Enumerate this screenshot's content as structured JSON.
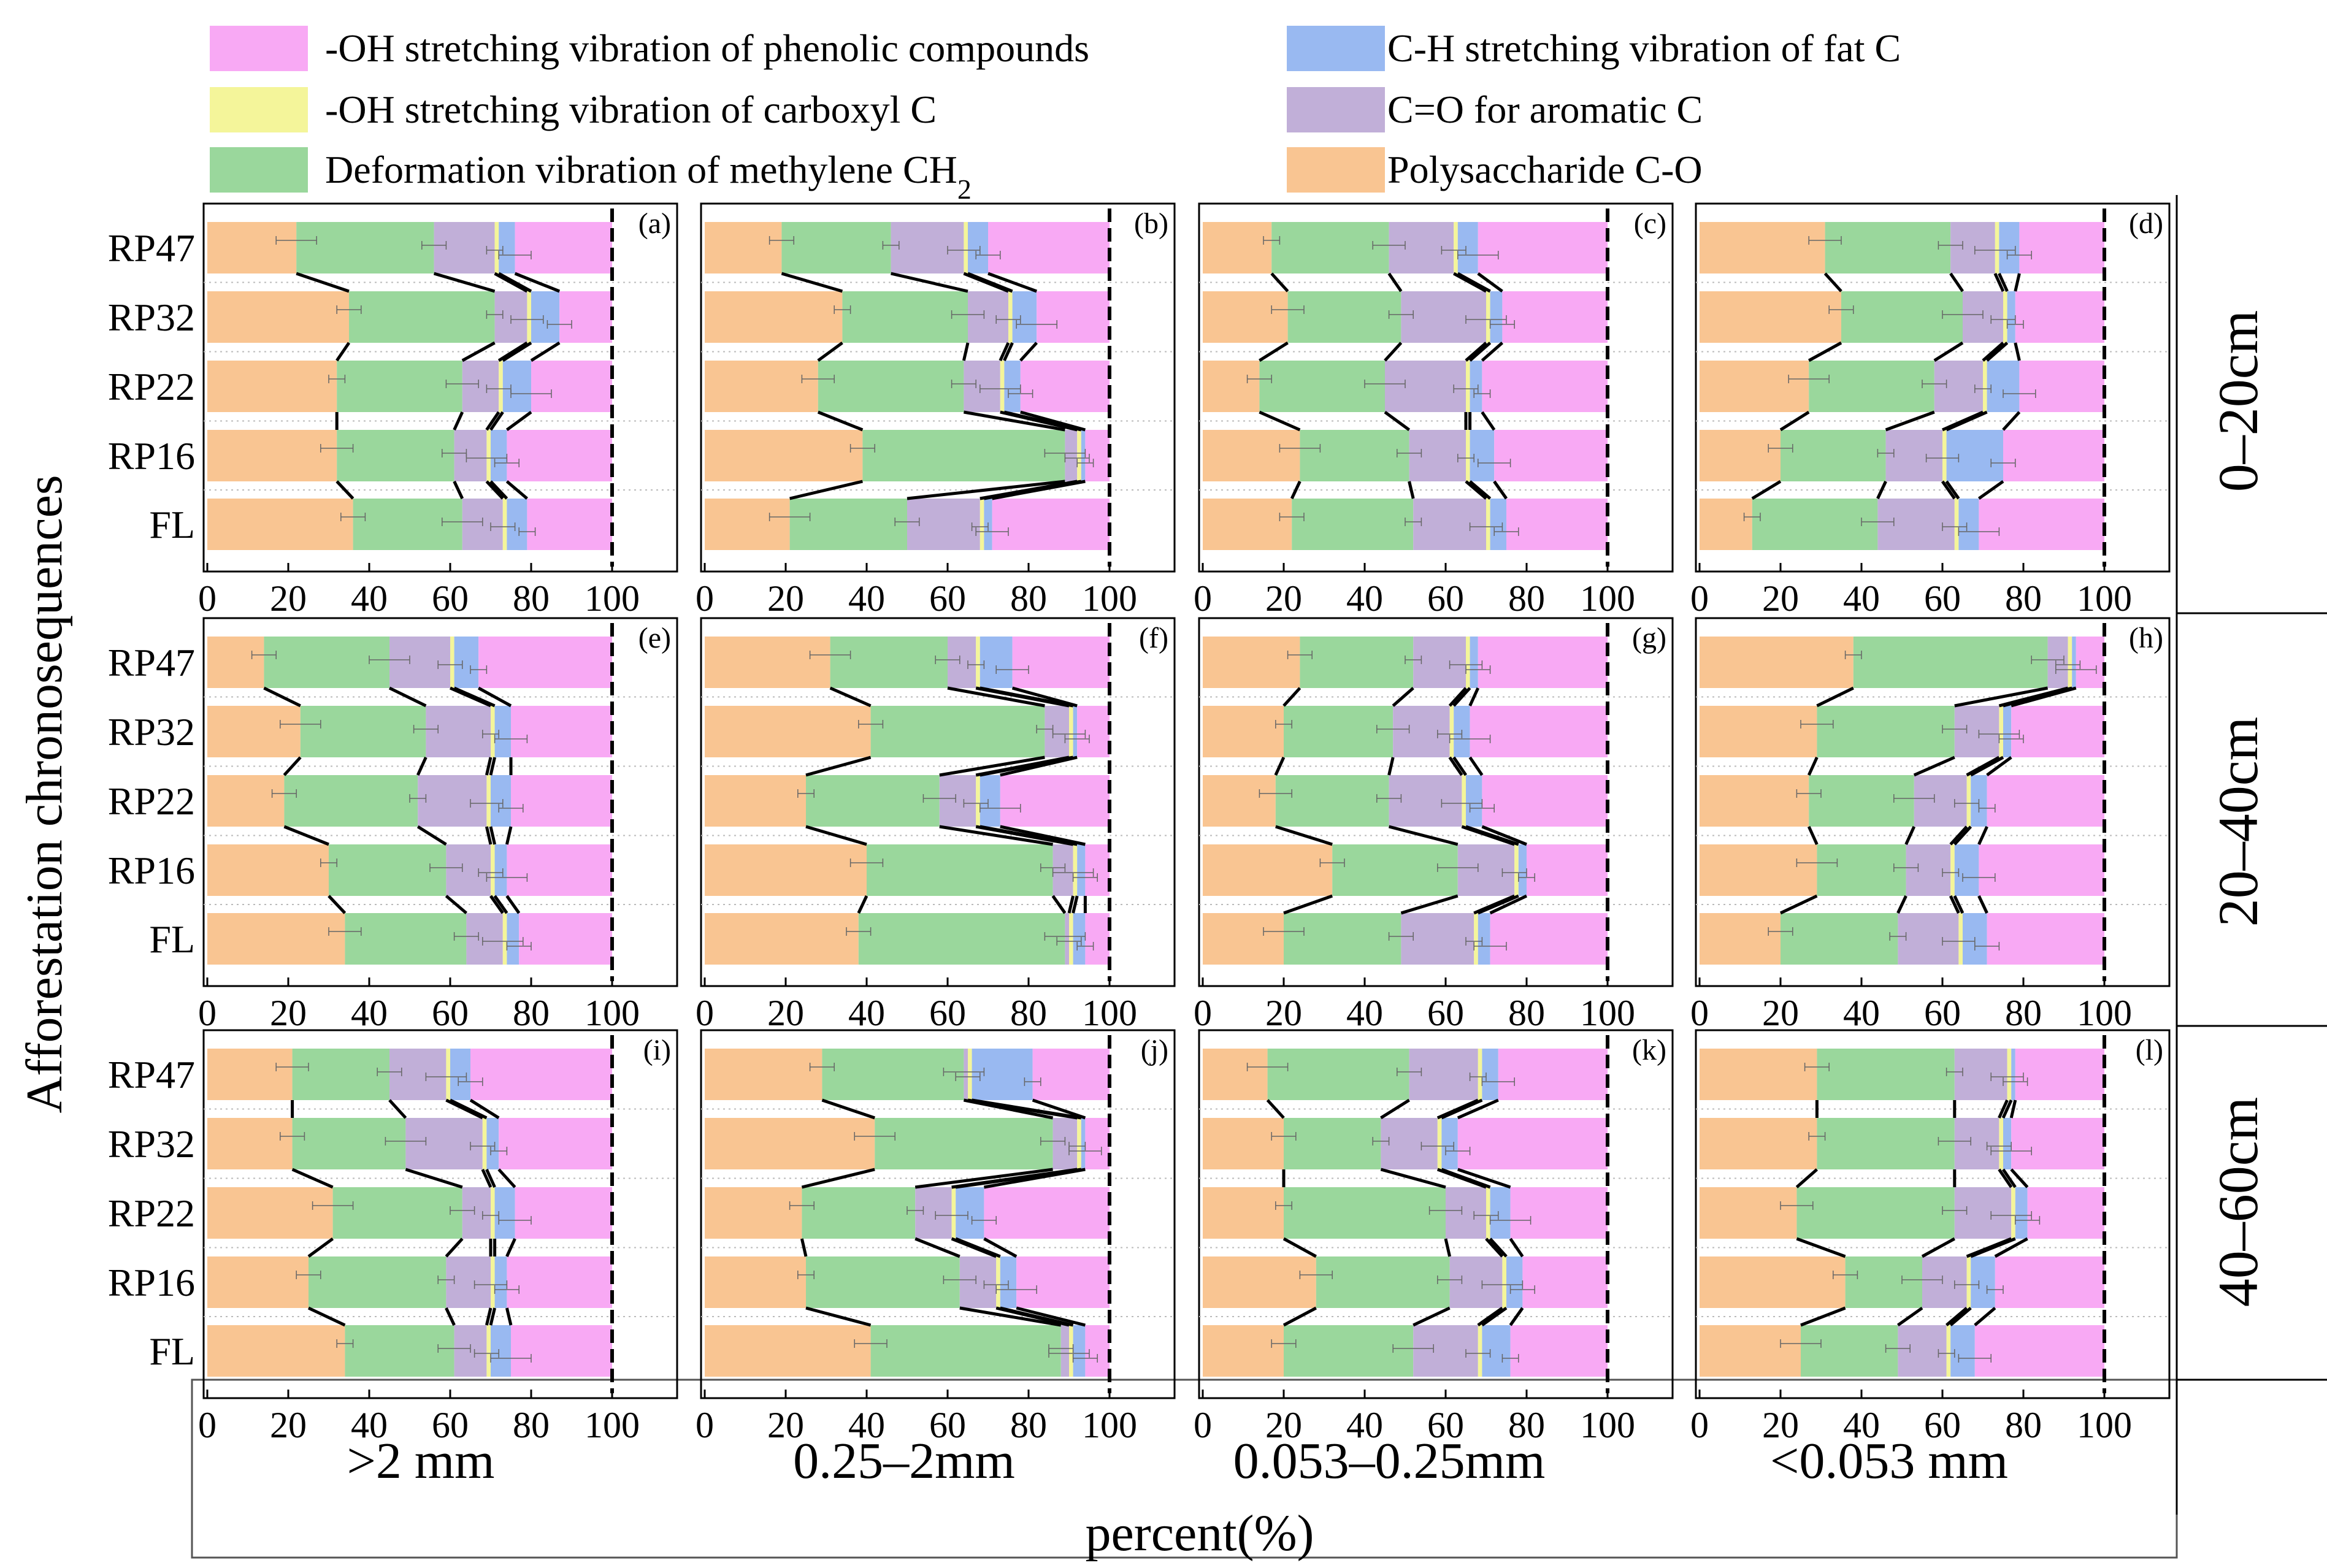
{
  "figure": {
    "y_axis_title": "Afforestation chronosequences",
    "x_axis_title": "percent(%)",
    "row_labels": [
      "0–20cm",
      "20–40cm",
      "40–60cm"
    ],
    "col_labels": [
      ">2 mm",
      "0.25–2mm",
      "0.053–0.25mm",
      "<0.053 mm"
    ]
  },
  "legend": [
    {
      "key": "poly",
      "label": "Polysaccharide C-O",
      "color": "#F9C592"
    },
    {
      "key": "ch2",
      "label": "Deformation vibration of methylene CH",
      "sub": "2",
      "color": "#9AD79C"
    },
    {
      "key": "arom",
      "label": "C=O for aromatic C",
      "color": "#C1AFD8"
    },
    {
      "key": "carb",
      "label": "-OH stretching vibration of carboxyl C",
      "color": "#F4F59A"
    },
    {
      "key": "fat",
      "label": "C-H stretching vibration of fat C",
      "color": "#99B9F1"
    },
    {
      "key": "phen",
      "label": "-OH stretching vibration of phenolic compounds",
      "color": "#F8A9F4"
    }
  ],
  "chart_data": {
    "type": "bar",
    "stacked": true,
    "orientation": "horizontal",
    "categories": [
      "RP47",
      "RP32",
      "RP22",
      "RP16",
      "FL"
    ],
    "series_order": [
      "poly",
      "ch2",
      "arom",
      "carb",
      "fat",
      "phen"
    ],
    "xlim": [
      0,
      100
    ],
    "x_ticks": [
      0,
      20,
      40,
      60,
      80,
      100
    ],
    "panels": [
      {
        "label": "(a)",
        "values": [
          [
            22,
            34,
            15,
            1,
            4,
            24
          ],
          [
            35,
            36,
            8,
            1,
            7,
            13
          ],
          [
            32,
            31,
            9,
            1,
            7,
            20
          ],
          [
            32,
            29,
            8,
            1,
            4,
            26
          ],
          [
            36,
            27,
            10,
            1,
            5,
            21
          ]
        ]
      },
      {
        "label": "(b)",
        "values": [
          [
            19,
            27,
            18,
            1,
            5,
            30
          ],
          [
            34,
            31,
            10,
            1,
            6,
            18
          ],
          [
            28,
            36,
            9,
            1,
            4,
            22
          ],
          [
            39,
            50,
            3,
            1,
            1,
            6
          ],
          [
            21,
            29,
            18,
            1,
            2,
            29
          ]
        ]
      },
      {
        "label": "(c)",
        "values": [
          [
            17,
            29,
            16,
            1,
            5,
            32
          ],
          [
            21,
            28,
            21,
            1,
            3,
            26
          ],
          [
            14,
            31,
            20,
            1,
            3,
            31
          ],
          [
            24,
            27,
            14,
            1,
            6,
            28
          ],
          [
            22,
            30,
            18,
            1,
            4,
            25
          ]
        ]
      },
      {
        "label": "(d)",
        "values": [
          [
            31,
            31,
            11,
            1,
            5,
            21
          ],
          [
            35,
            30,
            10,
            1,
            2,
            22
          ],
          [
            27,
            31,
            12,
            1,
            8,
            21
          ],
          [
            20,
            26,
            14,
            1,
            14,
            25
          ],
          [
            13,
            31,
            19,
            1,
            5,
            31
          ]
        ]
      },
      {
        "label": "(e)",
        "values": [
          [
            14,
            31,
            15,
            1,
            6,
            33
          ],
          [
            23,
            31,
            16,
            1,
            4,
            25
          ],
          [
            19,
            33,
            17,
            1,
            5,
            25
          ],
          [
            30,
            29,
            11,
            1,
            3,
            26
          ],
          [
            34,
            30,
            9,
            1,
            3,
            23
          ]
        ]
      },
      {
        "label": "(f)",
        "values": [
          [
            31,
            29,
            7,
            1,
            8,
            24
          ],
          [
            41,
            43,
            6,
            1,
            1,
            8
          ],
          [
            25,
            33,
            9,
            1,
            5,
            27
          ],
          [
            40,
            46,
            5,
            1,
            2,
            6
          ],
          [
            38,
            51,
            1,
            1,
            3,
            6
          ]
        ]
      },
      {
        "label": "(g)",
        "values": [
          [
            24,
            28,
            13,
            1,
            2,
            32
          ],
          [
            20,
            27,
            14,
            1,
            4,
            34
          ],
          [
            18,
            28,
            18,
            1,
            4,
            31
          ],
          [
            32,
            31,
            14,
            1,
            2,
            20
          ],
          [
            20,
            29,
            18,
            1,
            3,
            29
          ]
        ]
      },
      {
        "label": "(h)",
        "values": [
          [
            38,
            48,
            5,
            1,
            1,
            7
          ],
          [
            29,
            34,
            11,
            1,
            2,
            23
          ],
          [
            27,
            26,
            13,
            1,
            4,
            29
          ],
          [
            29,
            22,
            11,
            1,
            6,
            31
          ],
          [
            20,
            29,
            15,
            1,
            6,
            29
          ]
        ]
      },
      {
        "label": "(i)",
        "values": [
          [
            21,
            24,
            14,
            1,
            5,
            35
          ],
          [
            21,
            28,
            19,
            1,
            3,
            28
          ],
          [
            31,
            32,
            7,
            1,
            5,
            24
          ],
          [
            25,
            34,
            11,
            1,
            3,
            26
          ],
          [
            34,
            27,
            8,
            1,
            5,
            25
          ]
        ]
      },
      {
        "label": "(j)",
        "values": [
          [
            29,
            35,
            1,
            1,
            15,
            19
          ],
          [
            42,
            44,
            6,
            1,
            1,
            6
          ],
          [
            24,
            28,
            9,
            1,
            7,
            31
          ],
          [
            25,
            38,
            9,
            1,
            4,
            23
          ],
          [
            41,
            47,
            2,
            1,
            3,
            6
          ]
        ]
      },
      {
        "label": "(k)",
        "values": [
          [
            16,
            35,
            17,
            1,
            4,
            27
          ],
          [
            20,
            24,
            14,
            1,
            4,
            37
          ],
          [
            20,
            40,
            10,
            1,
            5,
            24
          ],
          [
            28,
            33,
            13,
            1,
            4,
            21
          ],
          [
            20,
            32,
            16,
            1,
            7,
            24
          ]
        ]
      },
      {
        "label": "(l)",
        "values": [
          [
            29,
            34,
            13,
            1,
            1,
            22
          ],
          [
            29,
            34,
            11,
            1,
            2,
            23
          ],
          [
            24,
            39,
            14,
            1,
            3,
            19
          ],
          [
            36,
            19,
            11,
            1,
            6,
            27
          ],
          [
            25,
            24,
            12,
            1,
            6,
            32
          ]
        ]
      }
    ]
  }
}
